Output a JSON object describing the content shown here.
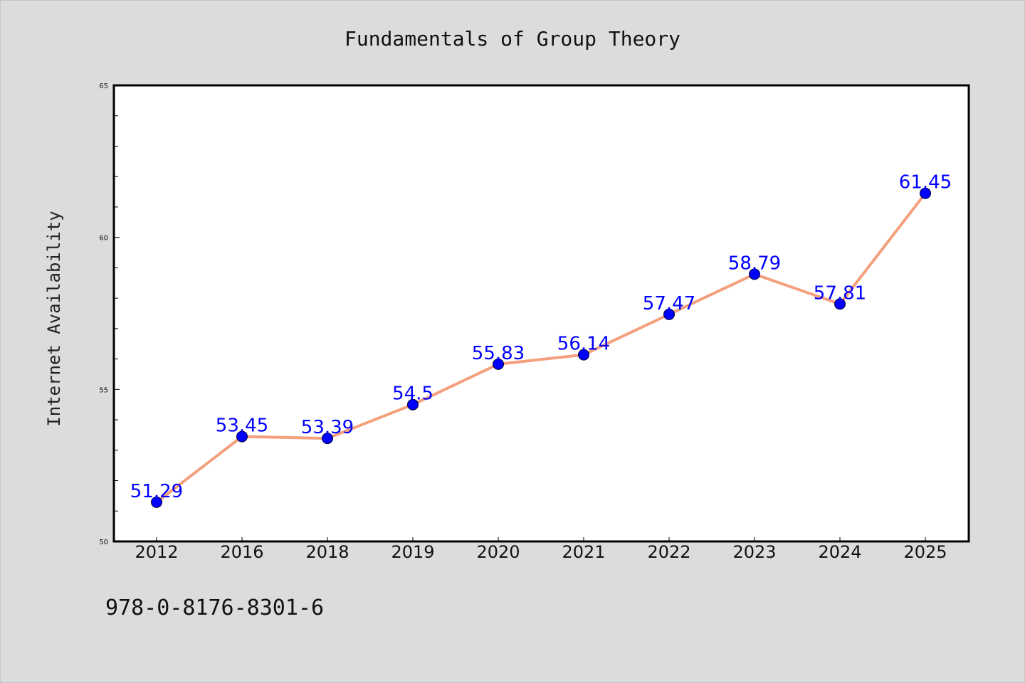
{
  "chart_data": {
    "type": "line",
    "title": "Fundamentals of Group Theory",
    "xlabel": "",
    "ylabel": "Internet Availability",
    "categories": [
      "2012",
      "2016",
      "2018",
      "2019",
      "2020",
      "2021",
      "2022",
      "2023",
      "2024",
      "2025"
    ],
    "series": [
      {
        "values": [
          51.29,
          53.45,
          53.39,
          54.5,
          55.83,
          56.14,
          57.47,
          58.79,
          57.81,
          61.45
        ],
        "labels": [
          "51.29",
          "53.45",
          "53.39",
          "54.5",
          "55.83",
          "56.14",
          "57.47",
          "58.79",
          "57.81",
          "61.45"
        ],
        "line_color": "#f4a07c",
        "marker_color": "#0000ff"
      }
    ],
    "ylim": [
      50,
      65
    ],
    "yticks": [
      50,
      55,
      60,
      65
    ],
    "ytick_labels": [
      "50",
      "55",
      "60",
      "65"
    ],
    "y_minor_step": 1,
    "grid": false,
    "legend": "none"
  },
  "footer": {
    "isbn": "978-0-8176-8301-6"
  }
}
